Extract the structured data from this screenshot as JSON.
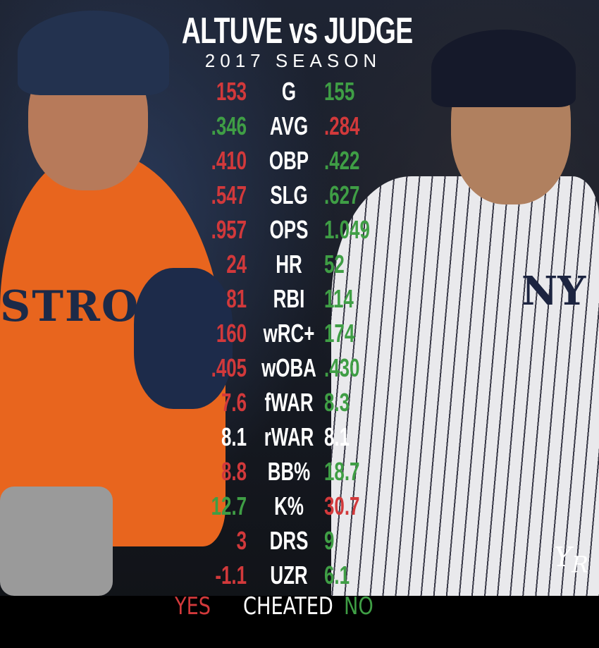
{
  "title": "ALTUVE vs JUDGE",
  "subtitle": "2017 SEASON",
  "colors": {
    "better": "#3f9e45",
    "worse": "#d2393b",
    "equal": "#ffffff"
  },
  "stats": [
    {
      "label": "G",
      "altuve": "153",
      "judge": "155",
      "altuve_color": "red",
      "judge_color": "green"
    },
    {
      "label": "AVG",
      "altuve": ".346",
      "judge": ".284",
      "altuve_color": "green",
      "judge_color": "red"
    },
    {
      "label": "OBP",
      "altuve": ".410",
      "judge": ".422",
      "altuve_color": "red",
      "judge_color": "green"
    },
    {
      "label": "SLG",
      "altuve": ".547",
      "judge": ".627",
      "altuve_color": "red",
      "judge_color": "green"
    },
    {
      "label": "OPS",
      "altuve": ".957",
      "judge": "1.049",
      "altuve_color": "red",
      "judge_color": "green"
    },
    {
      "label": "HR",
      "altuve": "24",
      "judge": "52",
      "altuve_color": "red",
      "judge_color": "green"
    },
    {
      "label": "RBI",
      "altuve": "81",
      "judge": "114",
      "altuve_color": "red",
      "judge_color": "green"
    },
    {
      "label": "wRC+",
      "altuve": "160",
      "judge": "174",
      "altuve_color": "red",
      "judge_color": "green"
    },
    {
      "label": "wOBA",
      "altuve": ".405",
      "judge": ".430",
      "altuve_color": "red",
      "judge_color": "green"
    },
    {
      "label": "fWAR",
      "altuve": "7.6",
      "judge": "8.3",
      "altuve_color": "red",
      "judge_color": "green"
    },
    {
      "label": "rWAR",
      "altuve": "8.1",
      "judge": "8.1",
      "altuve_color": "white",
      "judge_color": "white"
    },
    {
      "label": "BB%",
      "altuve": "8.8",
      "judge": "18.7",
      "altuve_color": "red",
      "judge_color": "green"
    },
    {
      "label": "K%",
      "altuve": "12.7",
      "judge": "30.7",
      "altuve_color": "green",
      "judge_color": "red"
    },
    {
      "label": "DRS",
      "altuve": "3",
      "judge": "9",
      "altuve_color": "red",
      "judge_color": "green"
    },
    {
      "label": "UZR",
      "altuve": "-1.1",
      "judge": "6.1",
      "altuve_color": "red",
      "judge_color": "green"
    }
  ],
  "footer": {
    "left": "YES",
    "center": "CHEATED",
    "right": "NO"
  },
  "logo": "YR"
}
